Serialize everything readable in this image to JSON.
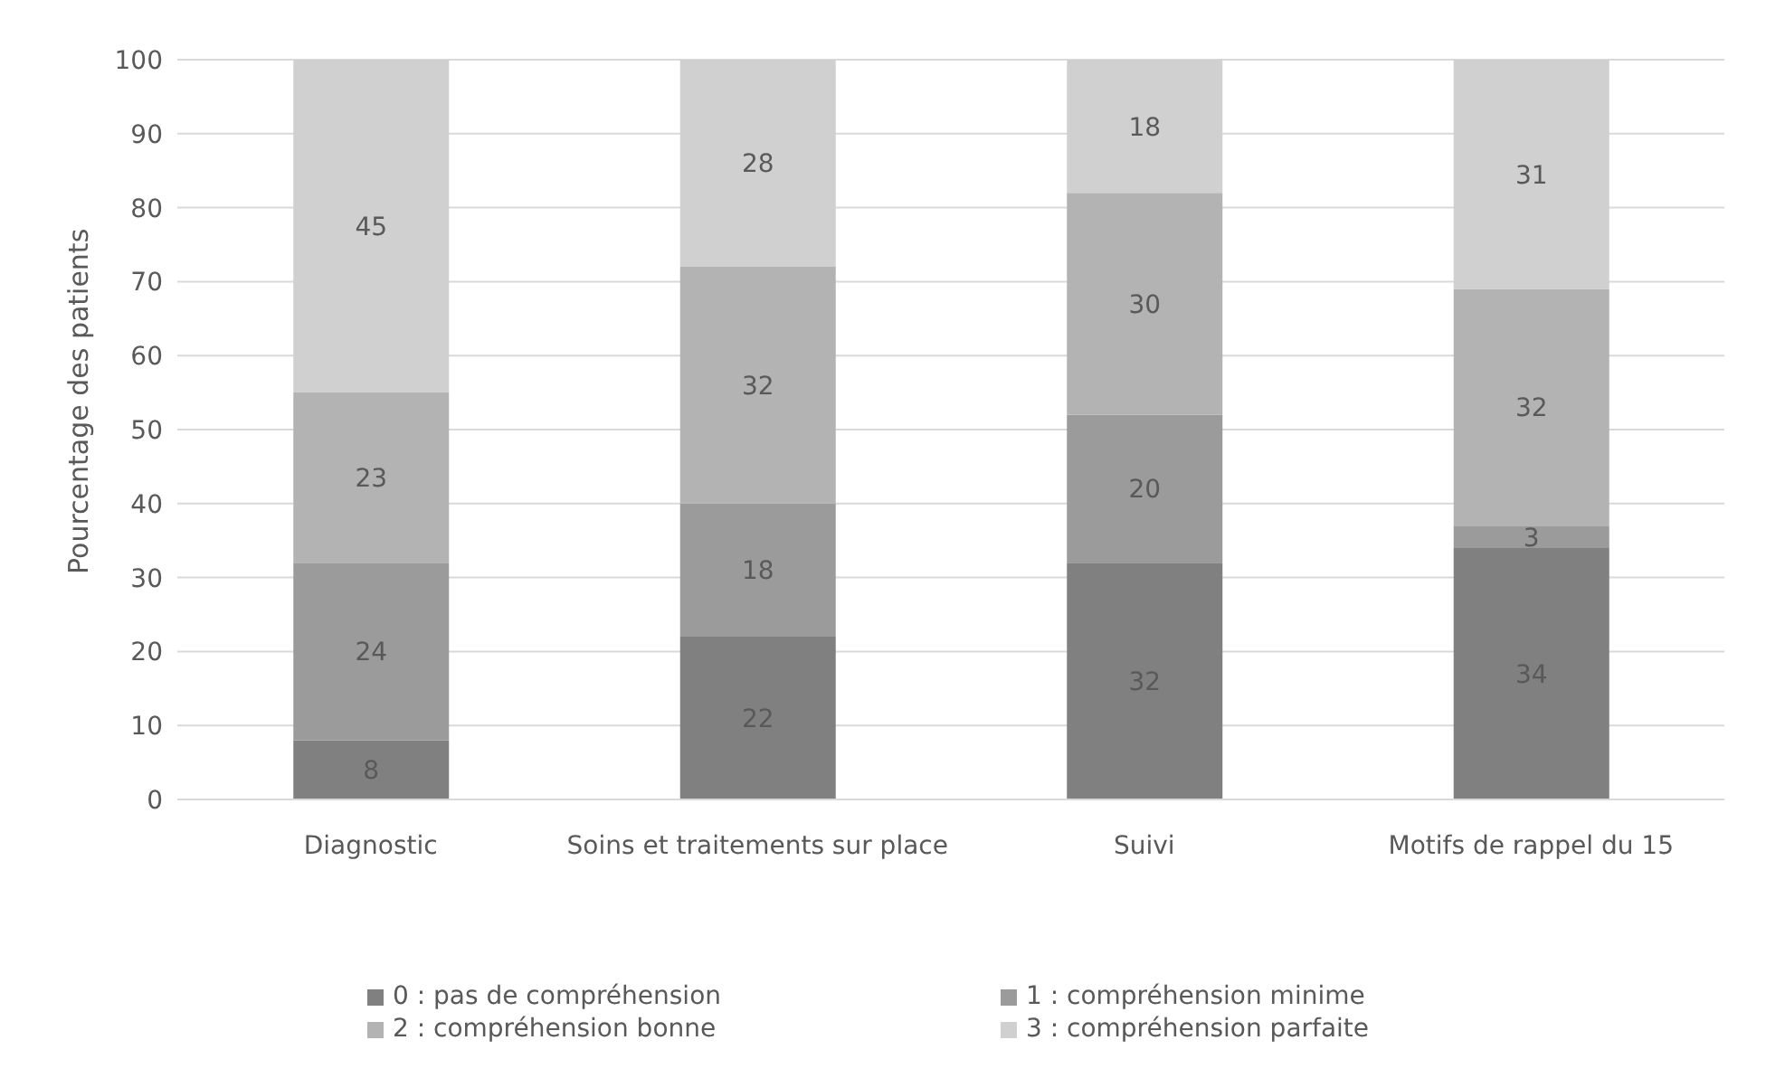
{
  "chart_data": {
    "type": "bar",
    "stacked": true,
    "ylabel": "Pourcentage des patients",
    "categories": [
      "Diagnostic",
      "Soins et traitements sur place",
      "Suivi",
      "Motifs de rappel du 15"
    ],
    "series": [
      {
        "name": "0 : pas de compréhension",
        "color": "#808080",
        "values": [
          8,
          22,
          32,
          34
        ]
      },
      {
        "name": "1 : compréhension minime",
        "color": "#9b9b9b",
        "values": [
          24,
          18,
          20,
          3
        ]
      },
      {
        "name": "2 : compréhension bonne",
        "color": "#b3b3b3",
        "values": [
          23,
          32,
          30,
          32
        ]
      },
      {
        "name": "3 : compréhension parfaite",
        "color": "#d0d0d0",
        "values": [
          45,
          28,
          18,
          31
        ]
      }
    ],
    "ylim": [
      0,
      100
    ],
    "yticks": [
      0,
      10,
      20,
      30,
      40,
      50,
      60,
      70,
      80,
      90,
      100
    ],
    "grid": "y",
    "legend": "bottom",
    "data_labels": true
  }
}
